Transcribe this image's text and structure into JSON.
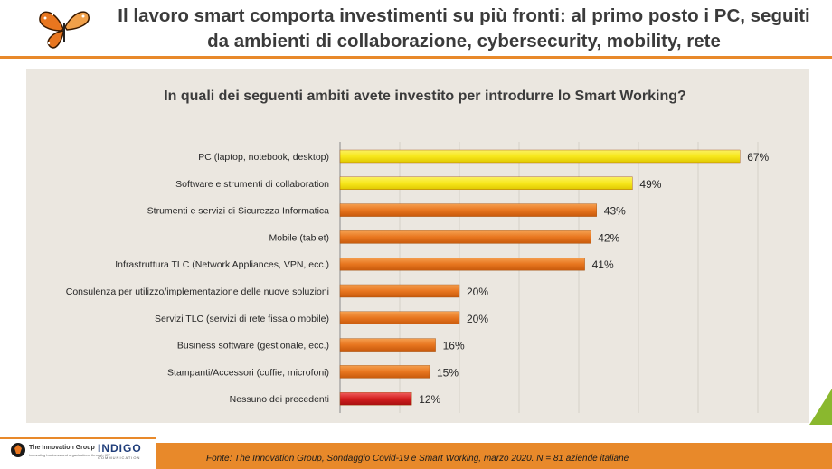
{
  "header": {
    "title": "Il lavoro smart comporta investimenti su più fronti: al primo posto i PC, seguiti da ambienti di collaborazione, cybersecurity, mobility, rete"
  },
  "chart_data": {
    "type": "bar",
    "orientation": "horizontal",
    "title": "In quali dei seguenti ambiti avete investito per introdurre lo Smart Working?",
    "categories": [
      "PC (laptop, notebook, desktop)",
      "Software e strumenti di collaboration",
      "Strumenti e servizi di Sicurezza Informatica",
      "Mobile (tablet)",
      "Infrastruttura TLC (Network Appliances, VPN, ecc.)",
      "Consulenza per utilizzo/implementazione delle nuove soluzioni",
      "Servizi TLC (servizi di rete fissa o mobile)",
      "Business software (gestionale, ecc.)",
      "Stampanti/Accessori (cuffie, microfoni)",
      "Nessuno dei precedenti"
    ],
    "values": [
      67,
      49,
      43,
      42,
      41,
      20,
      20,
      16,
      15,
      12
    ],
    "value_labels": [
      "67%",
      "49%",
      "43%",
      "42%",
      "41%",
      "20%",
      "20%",
      "16%",
      "15%",
      "12%"
    ],
    "bar_colors": [
      "#f7e81c",
      "#f7e81c",
      "#e8761f",
      "#e8761f",
      "#e8761f",
      "#e8761f",
      "#e8761f",
      "#e8761f",
      "#e8761f",
      "#d41f1f"
    ],
    "xlim": [
      0,
      70
    ],
    "grid": "vertical"
  },
  "footer": {
    "source": "Fonte: The Innovation Group, Sondaggio Covid-19 e Smart Working, marzo 2020. N = 81  aziende italiane",
    "logo_tig": "The Innovation Group",
    "logo_tig_tagline": "innovating business and organizations through ICT",
    "logo_indigo": "INDIGO",
    "logo_indigo_tagline": "COMMUNICATION"
  },
  "colors": {
    "accent": "#e8892a",
    "panel": "#ebe7e0"
  }
}
